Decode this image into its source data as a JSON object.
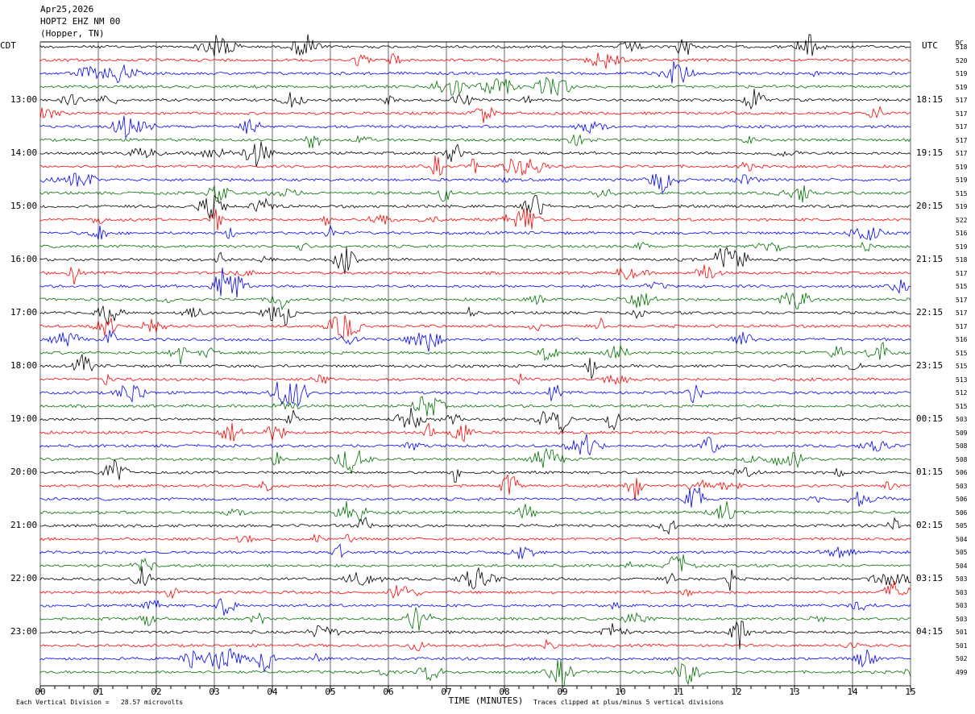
{
  "header": {
    "date": "Apr25,2026",
    "station": "HOPT2 EHZ NM 00",
    "location": "(Hopper, TN)"
  },
  "left_tz": "CDT",
  "right_tz": "UTC",
  "dc_header": "DC",
  "footer": {
    "scale": "Each Vertical Division =   28.57 microvolts",
    "xlabel": "TIME (MINUTES)",
    "clip_note": "Traces clipped at plus/minus 5 vertical divisions"
  },
  "colors": {
    "trace_cycle": [
      "#000000",
      "#ff0000",
      "#0000ff",
      "#007000"
    ],
    "grid": "#000000",
    "background": "#ffffff"
  },
  "chart_data": {
    "type": "line",
    "title": "",
    "xlabel": "TIME (MINUTES)",
    "x_ticks": [
      "00",
      "01",
      "02",
      "03",
      "04",
      "05",
      "06",
      "07",
      "08",
      "09",
      "10",
      "11",
      "12",
      "13",
      "14",
      "15"
    ],
    "xlim": [
      0,
      15
    ],
    "rows_per_hour": 4,
    "row_count": 48,
    "left_labels": [
      "13:00",
      "14:00",
      "15:00",
      "16:00",
      "17:00",
      "18:00",
      "19:00",
      "20:00",
      "21:00",
      "22:00",
      "23:00"
    ],
    "right_labels": [
      "18:15",
      "19:15",
      "20:15",
      "21:15",
      "22:15",
      "23:15",
      "00:15",
      "01:15",
      "02:15",
      "03:15",
      "04:15"
    ],
    "dc_offsets": [
      518,
      520,
      519,
      519,
      517,
      517,
      517,
      517,
      517,
      519,
      519,
      515,
      519,
      522,
      516,
      519,
      518,
      517,
      515,
      517,
      517,
      517,
      516,
      515,
      515,
      513,
      512,
      515,
      503,
      509,
      508,
      508,
      506,
      503,
      506,
      506,
      505,
      504,
      505,
      504,
      503,
      503,
      503,
      503,
      501,
      501,
      502,
      499
    ]
  }
}
